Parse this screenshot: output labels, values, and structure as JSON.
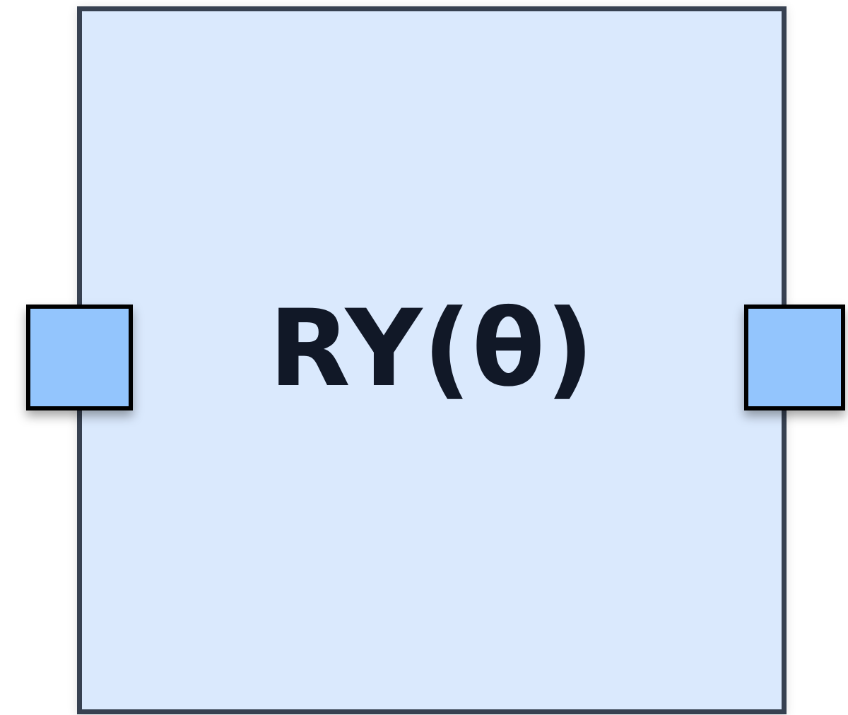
{
  "gate": {
    "label": "RY(θ)",
    "fill_color": "#dae9fd",
    "border_color": "#374151",
    "text_color": "#111827"
  },
  "ports": {
    "fill_color": "#93c5fd",
    "border_color": "#000000"
  }
}
